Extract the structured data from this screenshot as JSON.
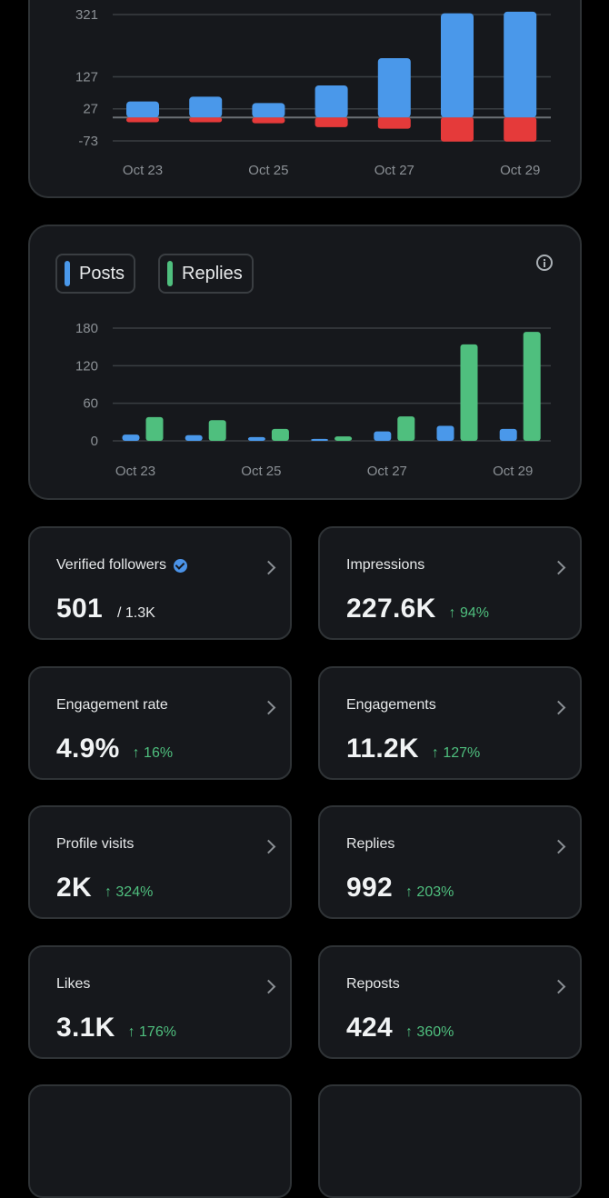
{
  "colors": {
    "blue": "#4a98ea",
    "red": "#e53a3a",
    "green": "#4fbf7e",
    "grid": "#3a3e42"
  },
  "chart_data": [
    {
      "type": "bar",
      "categories": [
        "Oct 23",
        "Oct 24",
        "Oct 25",
        "Oct 26",
        "Oct 27",
        "Oct 28",
        "Oct 29"
      ],
      "x_tick_labels": [
        "Oct 23",
        "Oct 25",
        "Oct 27",
        "Oct 29"
      ],
      "y_ticks": [
        321,
        127,
        27,
        -73
      ],
      "series": [
        {
          "values": [
            50,
            65,
            45,
            100,
            185,
            325,
            330
          ]
        },
        {
          "values": [
            -15,
            -15,
            -18,
            -30,
            -35,
            -75,
            -75
          ]
        }
      ],
      "ylim": [
        -73,
        321
      ],
      "grid": true
    },
    {
      "type": "bar",
      "categories": [
        "Oct 23",
        "Oct 24",
        "Oct 25",
        "Oct 26",
        "Oct 27",
        "Oct 28",
        "Oct 29"
      ],
      "x_tick_labels": [
        "Oct 23",
        "Oct 25",
        "Oct 27",
        "Oct 29"
      ],
      "y_ticks": [
        0,
        60,
        120,
        180
      ],
      "series": [
        {
          "name": "Posts",
          "values": [
            10,
            9,
            6,
            3,
            15,
            24,
            19
          ]
        },
        {
          "name": "Replies",
          "values": [
            38,
            33,
            19,
            7,
            39,
            154,
            174
          ]
        }
      ],
      "ylim": [
        0,
        180
      ],
      "grid": true,
      "legend": "top-left"
    }
  ],
  "legend": {
    "posts_label": "Posts",
    "replies_label": "Replies"
  },
  "metrics": [
    {
      "title": "Verified followers",
      "value": "501",
      "sub": "/ 1.3K",
      "delta": ""
    },
    {
      "title": "Impressions",
      "value": "227.6K",
      "sub": "",
      "delta": "↑ 94%"
    },
    {
      "title": "Engagement rate",
      "value": "4.9%",
      "sub": "",
      "delta": "↑ 16%"
    },
    {
      "title": "Engagements",
      "value": "11.2K",
      "sub": "",
      "delta": "↑ 127%"
    },
    {
      "title": "Profile visits",
      "value": "2K",
      "sub": "",
      "delta": "↑ 324%"
    },
    {
      "title": "Replies",
      "value": "992",
      "sub": "",
      "delta": "↑ 203%"
    },
    {
      "title": "Likes",
      "value": "3.1K",
      "sub": "",
      "delta": "↑ 176%"
    },
    {
      "title": "Reposts",
      "value": "424",
      "sub": "",
      "delta": "↑ 360%"
    }
  ]
}
